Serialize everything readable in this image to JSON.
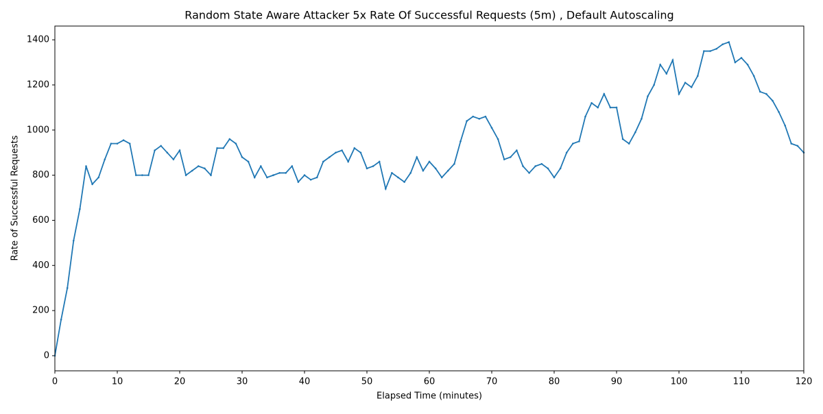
{
  "chart_data": {
    "type": "line",
    "title": "Random State Aware Attacker 5x Rate Of Successful Requests (5m) , Default Autoscaling",
    "xlabel": "Elapsed Time (minutes)",
    "ylabel": "Rate of Successful Requests",
    "x": [
      0,
      1,
      2,
      3,
      4,
      5,
      6,
      7,
      8,
      9,
      10,
      11,
      12,
      13,
      14,
      15,
      16,
      17,
      18,
      19,
      20,
      21,
      22,
      23,
      24,
      25,
      26,
      27,
      28,
      29,
      30,
      31,
      32,
      33,
      34,
      35,
      36,
      37,
      38,
      39,
      40,
      41,
      42,
      43,
      44,
      45,
      46,
      47,
      48,
      49,
      50,
      51,
      52,
      53,
      54,
      55,
      56,
      57,
      58,
      59,
      60,
      61,
      62,
      63,
      64,
      65,
      66,
      67,
      68,
      69,
      70,
      71,
      72,
      73,
      74,
      75,
      76,
      77,
      78,
      79,
      80,
      81,
      82,
      83,
      84,
      85,
      86,
      87,
      88,
      89,
      90,
      91,
      92,
      93,
      94,
      95,
      96,
      97,
      98,
      99,
      100,
      101,
      102,
      103,
      104,
      105,
      106,
      107,
      108,
      109,
      110,
      111,
      112,
      113,
      114,
      115,
      116,
      117,
      118,
      119,
      120
    ],
    "series": [
      {
        "name": "Rate of Successful Requests",
        "color": "#1f77b4",
        "values": [
          0,
          160,
          300,
          510,
          650,
          840,
          760,
          790,
          870,
          940,
          940,
          955,
          940,
          800,
          800,
          800,
          910,
          930,
          900,
          870,
          910,
          800,
          820,
          840,
          830,
          800,
          920,
          920,
          960,
          940,
          880,
          860,
          790,
          840,
          790,
          800,
          810,
          810,
          840,
          770,
          800,
          780,
          790,
          860,
          880,
          900,
          910,
          860,
          920,
          900,
          830,
          840,
          860,
          740,
          810,
          790,
          770,
          810,
          880,
          820,
          860,
          830,
          790,
          820,
          850,
          950,
          1040,
          1060,
          1050,
          1060,
          1010,
          960,
          870,
          880,
          910,
          840,
          810,
          840,
          850,
          830,
          790,
          830,
          900,
          940,
          950,
          1060,
          1120,
          1100,
          1160,
          1100,
          1100,
          960,
          940,
          990,
          1050,
          1150,
          1200,
          1290,
          1250,
          1310,
          1160,
          1210,
          1190,
          1240,
          1350,
          1350,
          1360,
          1380,
          1390,
          1300,
          1320,
          1290,
          1240,
          1170,
          1160,
          1130,
          1080,
          1020,
          940,
          930,
          900
        ]
      }
    ],
    "xlim": [
      0,
      120
    ],
    "ylim": [
      -67,
      1461
    ],
    "xticks": [
      0,
      10,
      20,
      30,
      40,
      50,
      60,
      70,
      80,
      90,
      100,
      110,
      120
    ],
    "yticks": [
      0,
      200,
      400,
      600,
      800,
      1000,
      1200,
      1400
    ],
    "grid": false
  }
}
